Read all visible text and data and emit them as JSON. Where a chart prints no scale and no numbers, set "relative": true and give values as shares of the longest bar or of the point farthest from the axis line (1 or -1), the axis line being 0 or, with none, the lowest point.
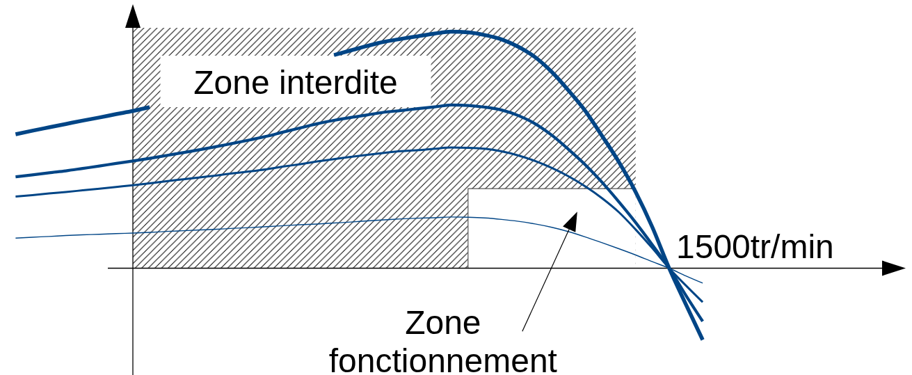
{
  "chart_data": {
    "type": "line",
    "relative": true,
    "categories": [
      null,
      null,
      null,
      null,
      null,
      null,
      null,
      null,
      null,
      null,
      null,
      null,
      null,
      null,
      null,
      null,
      null,
      null,
      null,
      null,
      null,
      null,
      null,
      null,
      null,
      null,
      null,
      null,
      null,
      null,
      null,
      null,
      null,
      null,
      null,
      null,
      null,
      null,
      null,
      null,
      null,
      null
    ],
    "series": [
      {
        "type": "area",
        "name": "Zone interdite",
        "color": "#000000",
        "values": [
          null,
          null,
          null,
          null,
          null,
          null,
          null,
          1,
          1,
          1,
          1,
          1,
          1,
          1,
          1,
          1,
          1,
          1,
          1,
          1,
          1,
          1,
          1,
          1,
          1,
          1,
          1,
          1,
          1,
          1,
          1,
          1,
          1,
          1,
          1,
          1,
          1,
          1,
          null,
          null,
          null,
          null
        ]
      },
      {
        "type": "area",
        "name": "Zone fonctionnement",
        "color": "#555555",
        "values": [
          null,
          null,
          null,
          null,
          null,
          null,
          null,
          null,
          null,
          null,
          null,
          null,
          null,
          null,
          null,
          null,
          null,
          null,
          null,
          null,
          null,
          null,
          null,
          null,
          null,
          null,
          null,
          0.331,
          0.331,
          0.331,
          0.331,
          0.331,
          0.331,
          0.331,
          0.331,
          0.331,
          0.331,
          0.331,
          null,
          null,
          null,
          null
        ]
      },
      {
        "color": "#004586",
        "values": [
          0.557,
          0.572,
          0.586,
          0.6,
          0.614,
          0.627,
          0.641,
          0.654,
          0.67,
          null,
          null,
          null,
          null,
          null,
          null,
          null,
          null,
          null,
          null,
          0.887,
          0.906,
          0.925,
          0.942,
          0.954,
          0.965,
          0.976,
          0.984,
          0.981,
          0.97,
          0.952,
          0.921,
          0.878,
          0.816,
          0.739,
          0.654,
          0.55,
          0.442,
          0.317,
          0.17,
          0,
          -0.151,
          -0.298
        ]
      },
      {
        "color": "#004586",
        "values": [
          0.38,
          0.388,
          0.397,
          0.405,
          0.415,
          0.425,
          0.436,
          0.446,
          0.457,
          0.469,
          0.481,
          0.493,
          0.506,
          0.52,
          0.534,
          0.549,
          0.567,
          0.584,
          0.601,
          0.615,
          0.627,
          0.638,
          0.649,
          0.656,
          0.664,
          0.671,
          0.679,
          0.677,
          0.67,
          0.658,
          0.635,
          0.601,
          0.553,
          0.494,
          0.43,
          0.357,
          0.276,
          0.19,
          0.097,
          0,
          -0.113,
          -0.221
        ]
      },
      {
        "color": "#004586",
        "values": [
          0.298,
          0.304,
          0.311,
          0.317,
          0.324,
          0.331,
          0.338,
          0.345,
          0.353,
          0.362,
          0.37,
          0.378,
          0.386,
          0.395,
          0.403,
          0.412,
          0.423,
          0.433,
          0.444,
          0.454,
          0.463,
          0.472,
          0.48,
          0.487,
          0.491,
          0.497,
          0.502,
          0.501,
          0.497,
          0.486,
          0.469,
          0.446,
          0.417,
          0.382,
          0.34,
          0.291,
          0.233,
          0.161,
          0.083,
          0,
          -0.072,
          -0.141
        ]
      },
      {
        "color": "#004586",
        "values": [
          0.125,
          0.129,
          0.132,
          0.136,
          0.139,
          0.141,
          0.144,
          0.146,
          0.149,
          0.153,
          0.156,
          0.159,
          0.162,
          0.166,
          0.169,
          0.173,
          0.177,
          0.181,
          0.184,
          0.188,
          0.192,
          0.197,
          0.201,
          0.205,
          0.208,
          0.21,
          0.213,
          0.212,
          0.209,
          0.203,
          0.195,
          0.184,
          0.17,
          0.152,
          0.13,
          0.106,
          0.081,
          0.055,
          0.027,
          0,
          -0.032,
          -0.062
        ]
      }
    ],
    "annotations": [
      "1500tr/min"
    ]
  }
}
